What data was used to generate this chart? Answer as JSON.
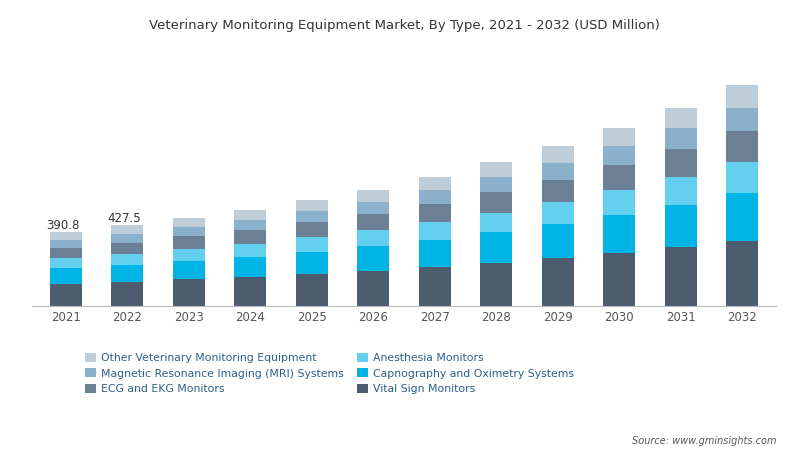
{
  "title": "Veterinary Monitoring Equipment Market, By Type, 2021 - 2032 (USD Million)",
  "years": [
    2021,
    2022,
    2023,
    2024,
    2025,
    2026,
    2027,
    2028,
    2029,
    2030,
    2031,
    2032
  ],
  "annotations": {
    "2021": "390.8",
    "2022": "427.5"
  },
  "segments": {
    "Vital Sign Monitors": {
      "color": "#4d5c6e",
      "values": [
        118,
        129,
        142,
        155,
        170,
        187,
        207,
        229,
        254,
        281,
        312,
        346
      ]
    },
    "Capnography and Oximetry Systems": {
      "color": "#00b4e6",
      "values": [
        82,
        90,
        98,
        107,
        118,
        130,
        145,
        162,
        181,
        202,
        226,
        253
      ]
    },
    "Anesthesia Monitors": {
      "color": "#63d0f0",
      "values": [
        52,
        57,
        63,
        69,
        76,
        84,
        93,
        104,
        116,
        130,
        146,
        163
      ]
    },
    "ECG and EKG Monitors": {
      "color": "#6b7f95",
      "values": [
        55,
        60,
        66,
        72,
        79,
        87,
        96,
        107,
        119,
        132,
        147,
        164
      ]
    },
    "Magnetic Resonance Imaging (MRI) Systems": {
      "color": "#8ab0cc",
      "values": [
        42,
        46,
        50,
        55,
        60,
        66,
        73,
        81,
        90,
        101,
        113,
        126
      ]
    },
    "Other Veterinary Monitoring Equipment": {
      "color": "#bfcdd8",
      "values": [
        42,
        45,
        49,
        53,
        58,
        63,
        70,
        78,
        86,
        97,
        108,
        121
      ]
    }
  },
  "legend_order": [
    "Other Veterinary Monitoring Equipment",
    "Magnetic Resonance Imaging (MRI) Systems",
    "ECG and EKG Monitors",
    "Anesthesia Monitors",
    "Capnography and Oximetry Systems",
    "Vital Sign Monitors"
  ],
  "source_text": "Source: www.gminsights.com",
  "background_color": "#ffffff",
  "title_color": "#333333",
  "tick_color": "#555555"
}
